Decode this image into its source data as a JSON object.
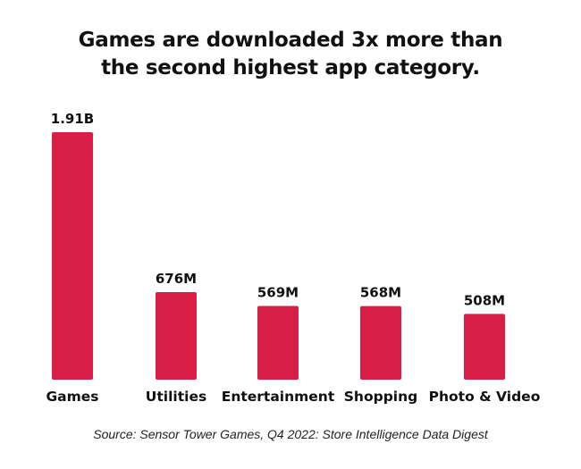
{
  "chart_data": {
    "type": "bar",
    "title_lines": [
      "Games are downloaded 3x more than",
      "the second highest app category."
    ],
    "categories": [
      "Games",
      "Utilities",
      "Entertainment",
      "Shopping",
      "Photo & Video"
    ],
    "values": [
      1910,
      676,
      569,
      568,
      508
    ],
    "value_unit": "millions of downloads",
    "data_labels": [
      "1.91B",
      "676M",
      "569M",
      "568M",
      "508M"
    ],
    "xlabel": "",
    "ylabel": "",
    "ylim": [
      0,
      1910
    ],
    "grid": false,
    "legend": "none",
    "bar_color": "#D81E45",
    "source": "Source: Sensor Tower Games, Q4 2022: Store Intelligence Data Digest"
  }
}
